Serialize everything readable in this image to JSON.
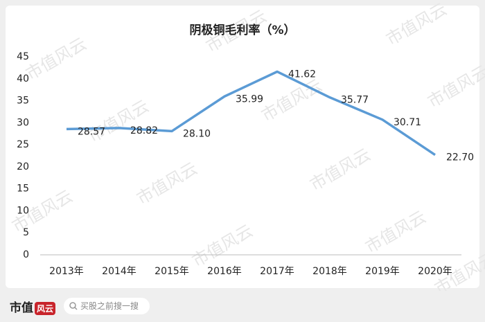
{
  "chart_data": {
    "type": "line",
    "title": "阴极铜毛利率（%）",
    "categories": [
      "2013年",
      "2014年",
      "2015年",
      "2016年",
      "2017年",
      "2018年",
      "2019年",
      "2020年"
    ],
    "series": [
      {
        "name": "阴极铜毛利率",
        "color": "#5b9bd5",
        "values": [
          28.57,
          28.82,
          28.1,
          35.99,
          41.62,
          35.77,
          30.71,
          22.7
        ],
        "value_labels": [
          "28.57",
          "28.82",
          "28.10",
          "35.99",
          "41.62",
          "35.77",
          "30.71",
          "22.70"
        ]
      }
    ],
    "ylim": [
      0,
      45
    ],
    "yticks": [
      0,
      5,
      10,
      15,
      20,
      25,
      30,
      35,
      40,
      45
    ],
    "grid": false
  },
  "watermark": "市值风云",
  "footer": {
    "logo_main": "市值",
    "logo_badge": "风云",
    "search_placeholder": "买股之前搜一搜"
  }
}
